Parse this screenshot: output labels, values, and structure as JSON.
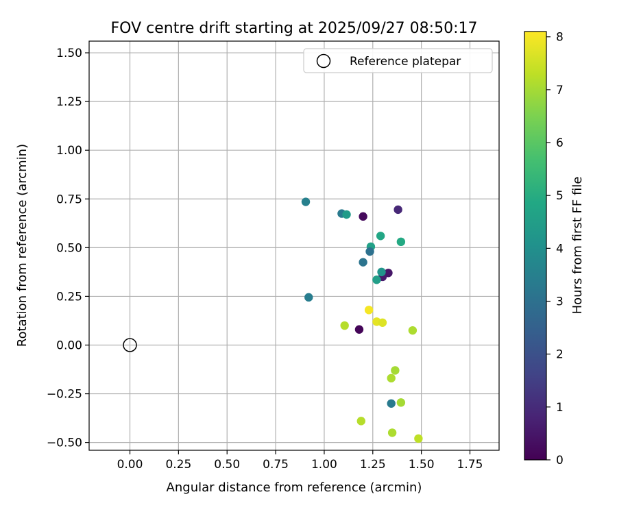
{
  "chart_data": {
    "type": "scatter",
    "title": "FOV centre drift starting at 2025/09/27 08:50:17",
    "xlabel": "Angular distance from reference (arcmin)",
    "ylabel": "Rotation from reference (arcmin)",
    "xlim": [
      -0.21,
      1.9
    ],
    "ylim": [
      -0.54,
      1.56
    ],
    "xticks": [
      0.0,
      0.25,
      0.5,
      0.75,
      1.0,
      1.25,
      1.5,
      1.75
    ],
    "xtick_labels": [
      "0.00",
      "0.25",
      "0.50",
      "0.75",
      "1.00",
      "1.25",
      "1.50",
      "1.75"
    ],
    "yticks": [
      -0.5,
      -0.25,
      0.0,
      0.25,
      0.5,
      0.75,
      1.0,
      1.25,
      1.5
    ],
    "ytick_labels": [
      "−0.50",
      "−0.25",
      "0.00",
      "0.25",
      "0.50",
      "0.75",
      "1.00",
      "1.25",
      "1.50"
    ],
    "grid": true,
    "legend": {
      "placement": "top-right",
      "entries": [
        "Reference platepar"
      ]
    },
    "reference_point": {
      "x": 0.0,
      "y": 0.0,
      "label": "Reference platepar"
    },
    "colorbar": {
      "label": "Hours from first FF file",
      "min": 0,
      "max": 8.1,
      "ticks": [
        0,
        1,
        2,
        3,
        4,
        5,
        6,
        7,
        8
      ],
      "tick_labels": [
        "0",
        "1",
        "2",
        "3",
        "4",
        "5",
        "6",
        "7",
        "8"
      ],
      "colormap": "viridis"
    },
    "points": [
      {
        "x": 0.905,
        "y": 0.735,
        "hours": 3.5
      },
      {
        "x": 1.09,
        "y": 0.675,
        "hours": 3.3
      },
      {
        "x": 1.115,
        "y": 0.67,
        "hours": 4.4
      },
      {
        "x": 1.2,
        "y": 0.66,
        "hours": 0.2
      },
      {
        "x": 1.38,
        "y": 0.695,
        "hours": 0.9
      },
      {
        "x": 1.29,
        "y": 0.56,
        "hours": 4.8
      },
      {
        "x": 1.395,
        "y": 0.53,
        "hours": 4.9
      },
      {
        "x": 1.24,
        "y": 0.505,
        "hours": 4.6
      },
      {
        "x": 1.235,
        "y": 0.48,
        "hours": 3.0
      },
      {
        "x": 1.2,
        "y": 0.425,
        "hours": 3.1
      },
      {
        "x": 1.33,
        "y": 0.37,
        "hours": 0.5
      },
      {
        "x": 1.3,
        "y": 0.35,
        "hours": 0.6
      },
      {
        "x": 1.295,
        "y": 0.375,
        "hours": 4.2
      },
      {
        "x": 1.27,
        "y": 0.335,
        "hours": 4.5
      },
      {
        "x": 0.92,
        "y": 0.245,
        "hours": 3.4
      },
      {
        "x": 1.23,
        "y": 0.18,
        "hours": 8.0
      },
      {
        "x": 1.27,
        "y": 0.12,
        "hours": 7.8
      },
      {
        "x": 1.3,
        "y": 0.115,
        "hours": 7.7
      },
      {
        "x": 1.105,
        "y": 0.1,
        "hours": 7.2
      },
      {
        "x": 1.18,
        "y": 0.08,
        "hours": 0.1
      },
      {
        "x": 1.455,
        "y": 0.075,
        "hours": 7.1
      },
      {
        "x": 1.365,
        "y": -0.13,
        "hours": 7.0
      },
      {
        "x": 1.345,
        "y": -0.17,
        "hours": 7.1
      },
      {
        "x": 1.345,
        "y": -0.3,
        "hours": 3.3
      },
      {
        "x": 1.395,
        "y": -0.295,
        "hours": 7.0
      },
      {
        "x": 1.19,
        "y": -0.39,
        "hours": 7.2
      },
      {
        "x": 1.35,
        "y": -0.45,
        "hours": 7.1
      },
      {
        "x": 1.485,
        "y": -0.48,
        "hours": 7.3
      }
    ]
  }
}
